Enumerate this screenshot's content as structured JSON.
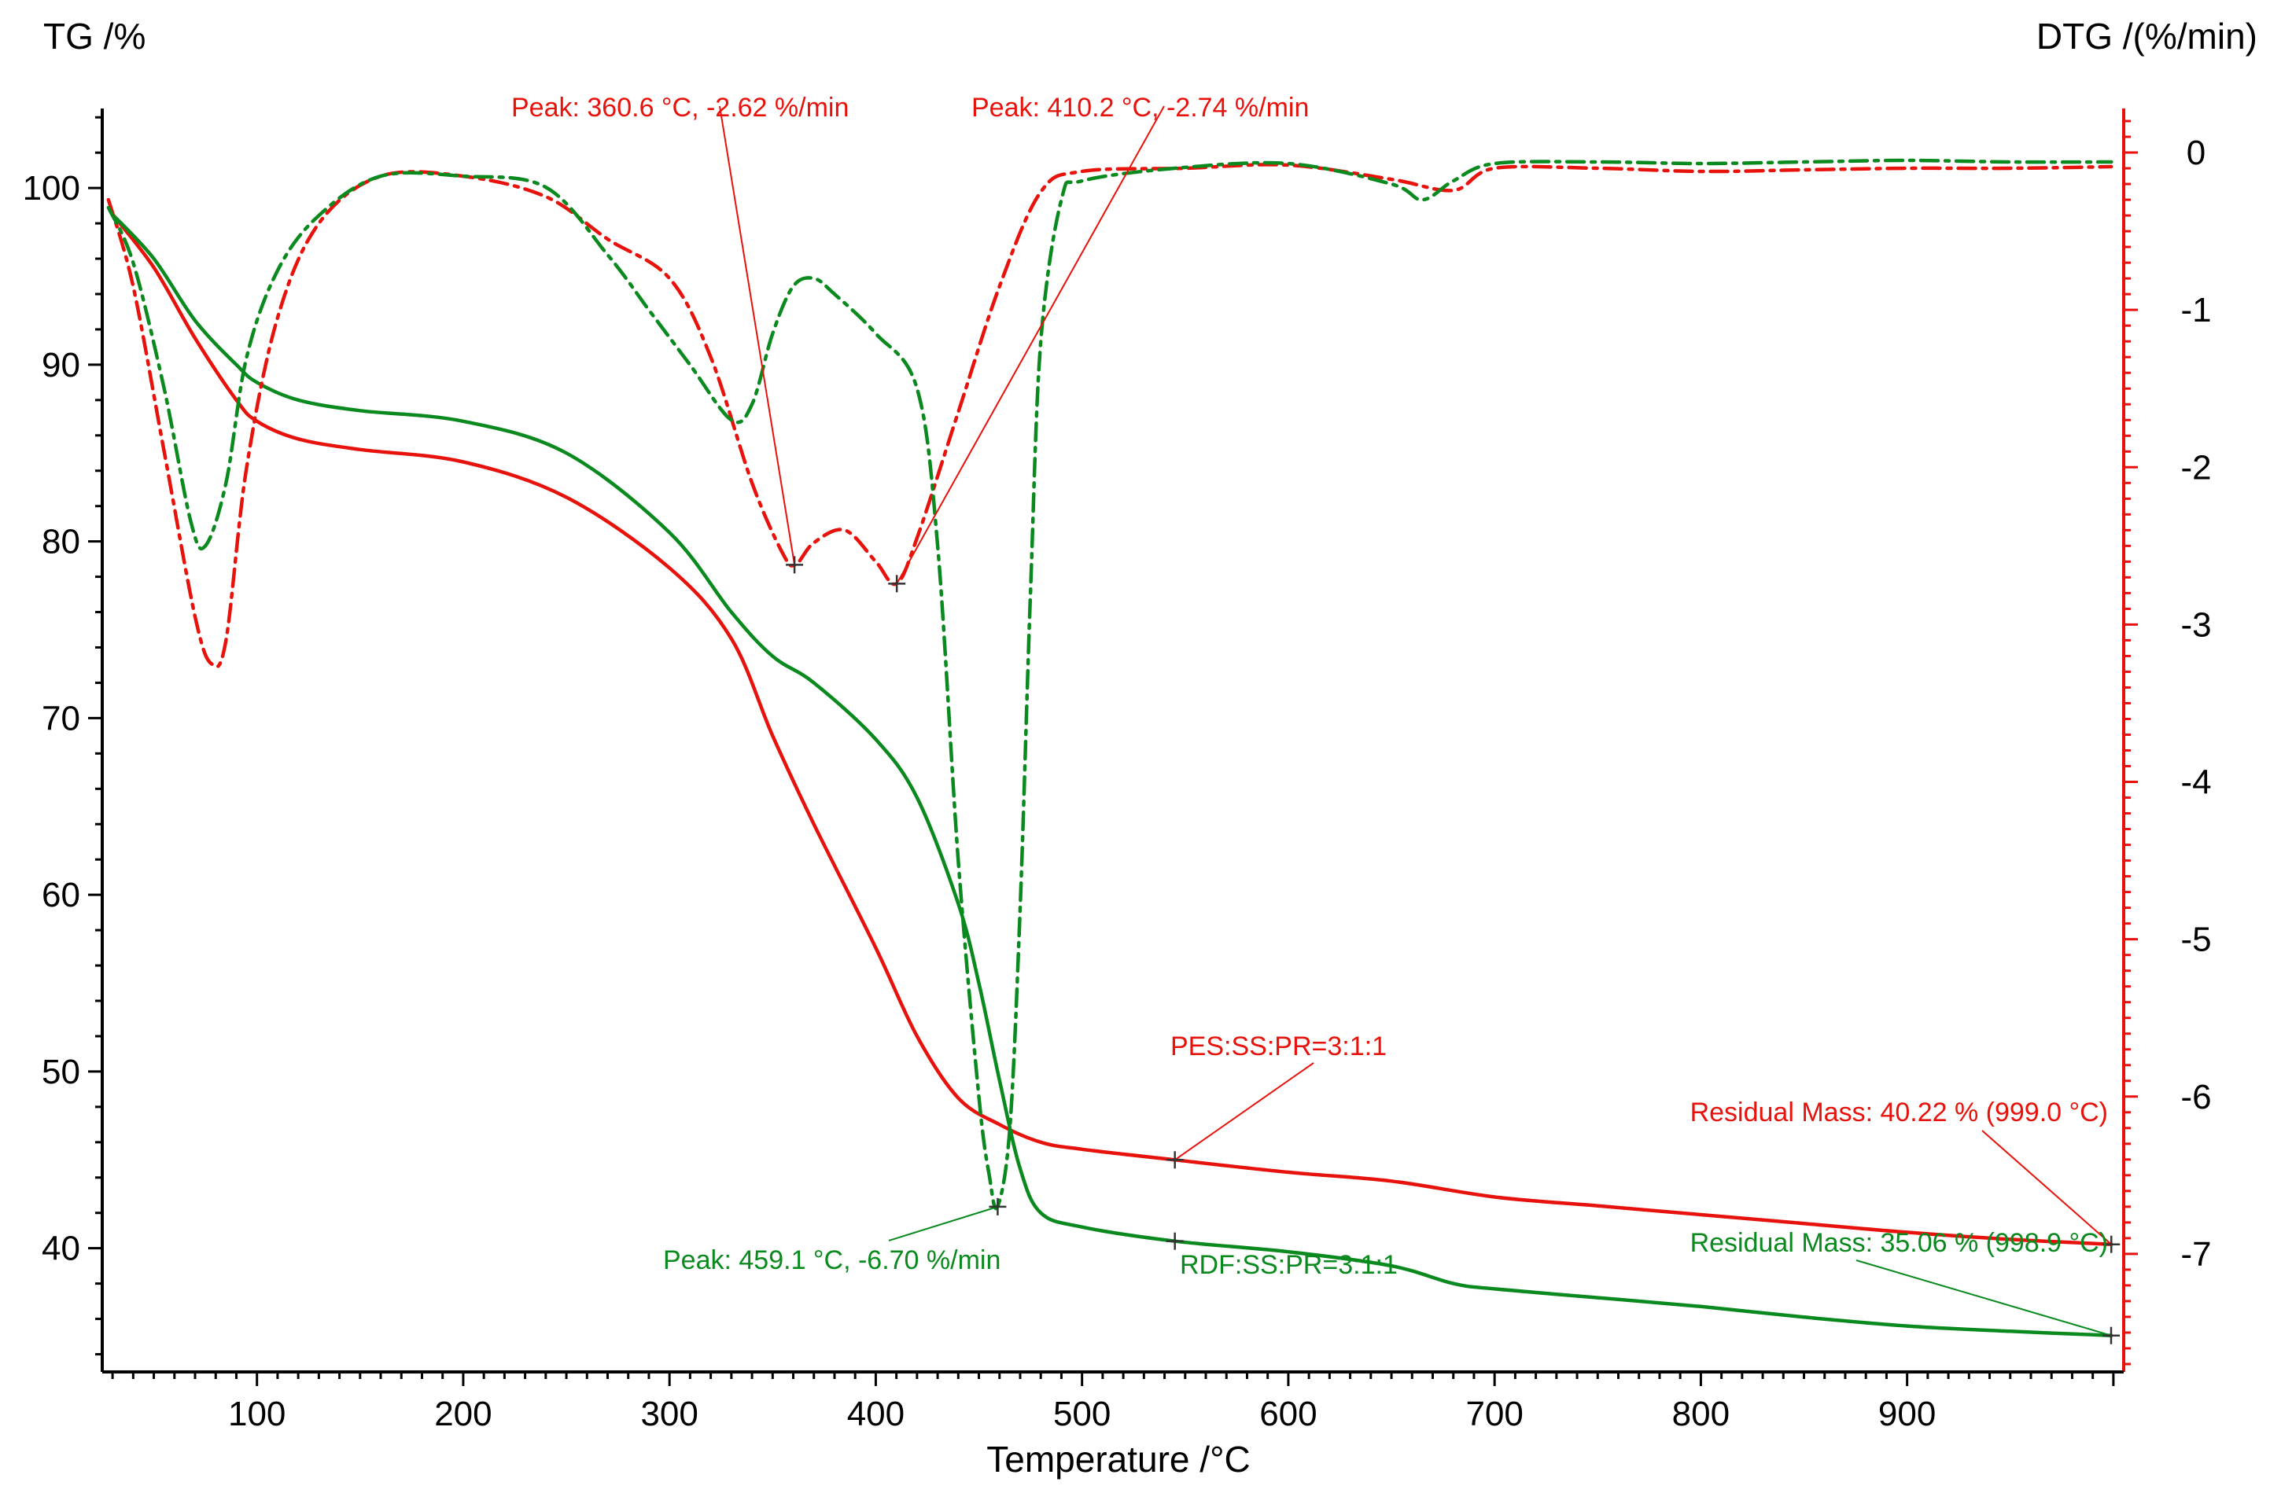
{
  "chart_data": {
    "type": "line",
    "x_axis": {
      "label": "Temperature /°C",
      "min": 25,
      "max": 1005,
      "ticks": [
        100,
        200,
        300,
        400,
        500,
        600,
        700,
        800,
        900
      ]
    },
    "y_axis_left": {
      "label": "TG /%",
      "min": 33,
      "max": 104.5,
      "ticks": [
        40,
        50,
        60,
        70,
        80,
        90,
        100
      ]
    },
    "y_axis_right": {
      "label": "DTG /(%/min)",
      "min": -7.75,
      "max": 0.28,
      "ticks": [
        0,
        -1,
        -2,
        -3,
        -4,
        -5,
        -6,
        -7
      ]
    },
    "series": [
      {
        "name": "TG PES:SS:PR=3:1:1",
        "axis": "left",
        "color": "#e8120c",
        "style": "solid",
        "x": [
          30,
          50,
          70,
          90,
          100,
          120,
          150,
          200,
          250,
          300,
          330,
          350,
          370,
          400,
          420,
          440,
          460,
          480,
          500,
          545,
          600,
          650,
          700,
          750,
          800,
          850,
          900,
          950,
          999
        ],
        "y": [
          98.5,
          95.5,
          91.5,
          88.0,
          86.8,
          85.8,
          85.2,
          84.5,
          82.5,
          78.5,
          74.5,
          69.0,
          64.0,
          57.0,
          52.0,
          48.5,
          47.0,
          46.0,
          45.6,
          45.0,
          44.3,
          43.8,
          42.9,
          42.4,
          41.9,
          41.4,
          40.9,
          40.5,
          40.22
        ]
      },
      {
        "name": "TG RDF:SS:PR=3:1:1",
        "axis": "left",
        "color": "#0a8a1e",
        "style": "solid",
        "x": [
          30,
          50,
          70,
          90,
          100,
          120,
          150,
          200,
          250,
          300,
          330,
          350,
          370,
          400,
          420,
          440,
          450,
          460,
          470,
          480,
          500,
          545,
          600,
          650,
          680,
          700,
          750,
          800,
          850,
          900,
          950,
          999
        ],
        "y": [
          98.5,
          96.0,
          92.5,
          90.0,
          89.0,
          88.0,
          87.4,
          86.8,
          85.0,
          80.5,
          76.0,
          73.5,
          72.0,
          68.8,
          65.5,
          59.5,
          55.0,
          49.5,
          44.5,
          42.0,
          41.2,
          40.4,
          39.8,
          39.0,
          38.0,
          37.7,
          37.2,
          36.7,
          36.1,
          35.6,
          35.3,
          35.06
        ]
      },
      {
        "name": "DTG PES:SS:PR=3:1:1",
        "axis": "right",
        "color": "#e8120c",
        "style": "dash-dot",
        "x": [
          28,
          40,
          55,
          70,
          78,
          85,
          95,
          110,
          130,
          160,
          200,
          240,
          270,
          300,
          320,
          340,
          355,
          361,
          370,
          385,
          400,
          410,
          420,
          440,
          460,
          480,
          500,
          550,
          600,
          650,
          680,
          700,
          750,
          800,
          850,
          900,
          950,
          999
        ],
        "y": [
          -0.3,
          -0.85,
          -1.9,
          -2.95,
          -3.25,
          -3.1,
          -2.0,
          -1.05,
          -0.45,
          -0.15,
          -0.15,
          -0.28,
          -0.55,
          -0.8,
          -1.3,
          -2.1,
          -2.55,
          -2.62,
          -2.48,
          -2.4,
          -2.6,
          -2.74,
          -2.45,
          -1.65,
          -0.85,
          -0.25,
          -0.12,
          -0.1,
          -0.08,
          -0.17,
          -0.24,
          -0.1,
          -0.1,
          -0.12,
          -0.11,
          -0.1,
          -0.1,
          -0.09
        ]
      },
      {
        "name": "DTG RDF:SS:PR=3:1:1",
        "axis": "right",
        "color": "#0a8a1e",
        "style": "dash-dot",
        "x": [
          28,
          40,
          55,
          68,
          75,
          85,
          95,
          110,
          130,
          160,
          200,
          240,
          270,
          290,
          310,
          330,
          340,
          350,
          360,
          370,
          380,
          400,
          420,
          430,
          440,
          450,
          455,
          459,
          465,
          470,
          475,
          480,
          490,
          500,
          545,
          600,
          650,
          665,
          680,
          700,
          750,
          800,
          850,
          900,
          950,
          999
        ],
        "y": [
          -0.35,
          -0.7,
          -1.5,
          -2.35,
          -2.5,
          -2.1,
          -1.3,
          -0.75,
          -0.4,
          -0.15,
          -0.15,
          -0.22,
          -0.65,
          -1.0,
          -1.35,
          -1.7,
          -1.6,
          -1.15,
          -0.85,
          -0.8,
          -0.9,
          -1.15,
          -1.5,
          -2.5,
          -4.5,
          -6.0,
          -6.5,
          -6.7,
          -6.2,
          -4.8,
          -2.8,
          -1.2,
          -0.3,
          -0.18,
          -0.1,
          -0.07,
          -0.2,
          -0.3,
          -0.18,
          -0.07,
          -0.06,
          -0.07,
          -0.06,
          -0.05,
          -0.06,
          -0.06
        ]
      }
    ],
    "annotations": [
      {
        "text": "Peak: 360.6 °C, -2.62 %/min",
        "x": 360.6,
        "y": -2.62,
        "axis": "right",
        "color": "#e8120c"
      },
      {
        "text": "Peak: 410.2 °C, -2.74 %/min",
        "x": 410.2,
        "y": -2.74,
        "axis": "right",
        "color": "#e8120c"
      },
      {
        "text": "Peak: 459.1 °C, -6.70 %/min",
        "x": 459.1,
        "y": -6.7,
        "axis": "right",
        "color": "#0a8a1e"
      },
      {
        "text": "PES:SS:PR=3:1:1",
        "x": 545,
        "y": 45.0,
        "axis": "left",
        "color": "#e8120c"
      },
      {
        "text": "RDF:SS:PR=3:1:1",
        "x": 545,
        "y": 40.4,
        "axis": "left",
        "color": "#0a8a1e"
      },
      {
        "text": "Residual Mass: 40.22 % (999.0 °C)",
        "x": 999.0,
        "y": 40.22,
        "axis": "left",
        "color": "#e8120c"
      },
      {
        "text": "Residual Mass: 35.06 % (998.9 °C)",
        "x": 998.9,
        "y": 35.06,
        "axis": "left",
        "color": "#0a8a1e"
      }
    ],
    "grid": false
  }
}
